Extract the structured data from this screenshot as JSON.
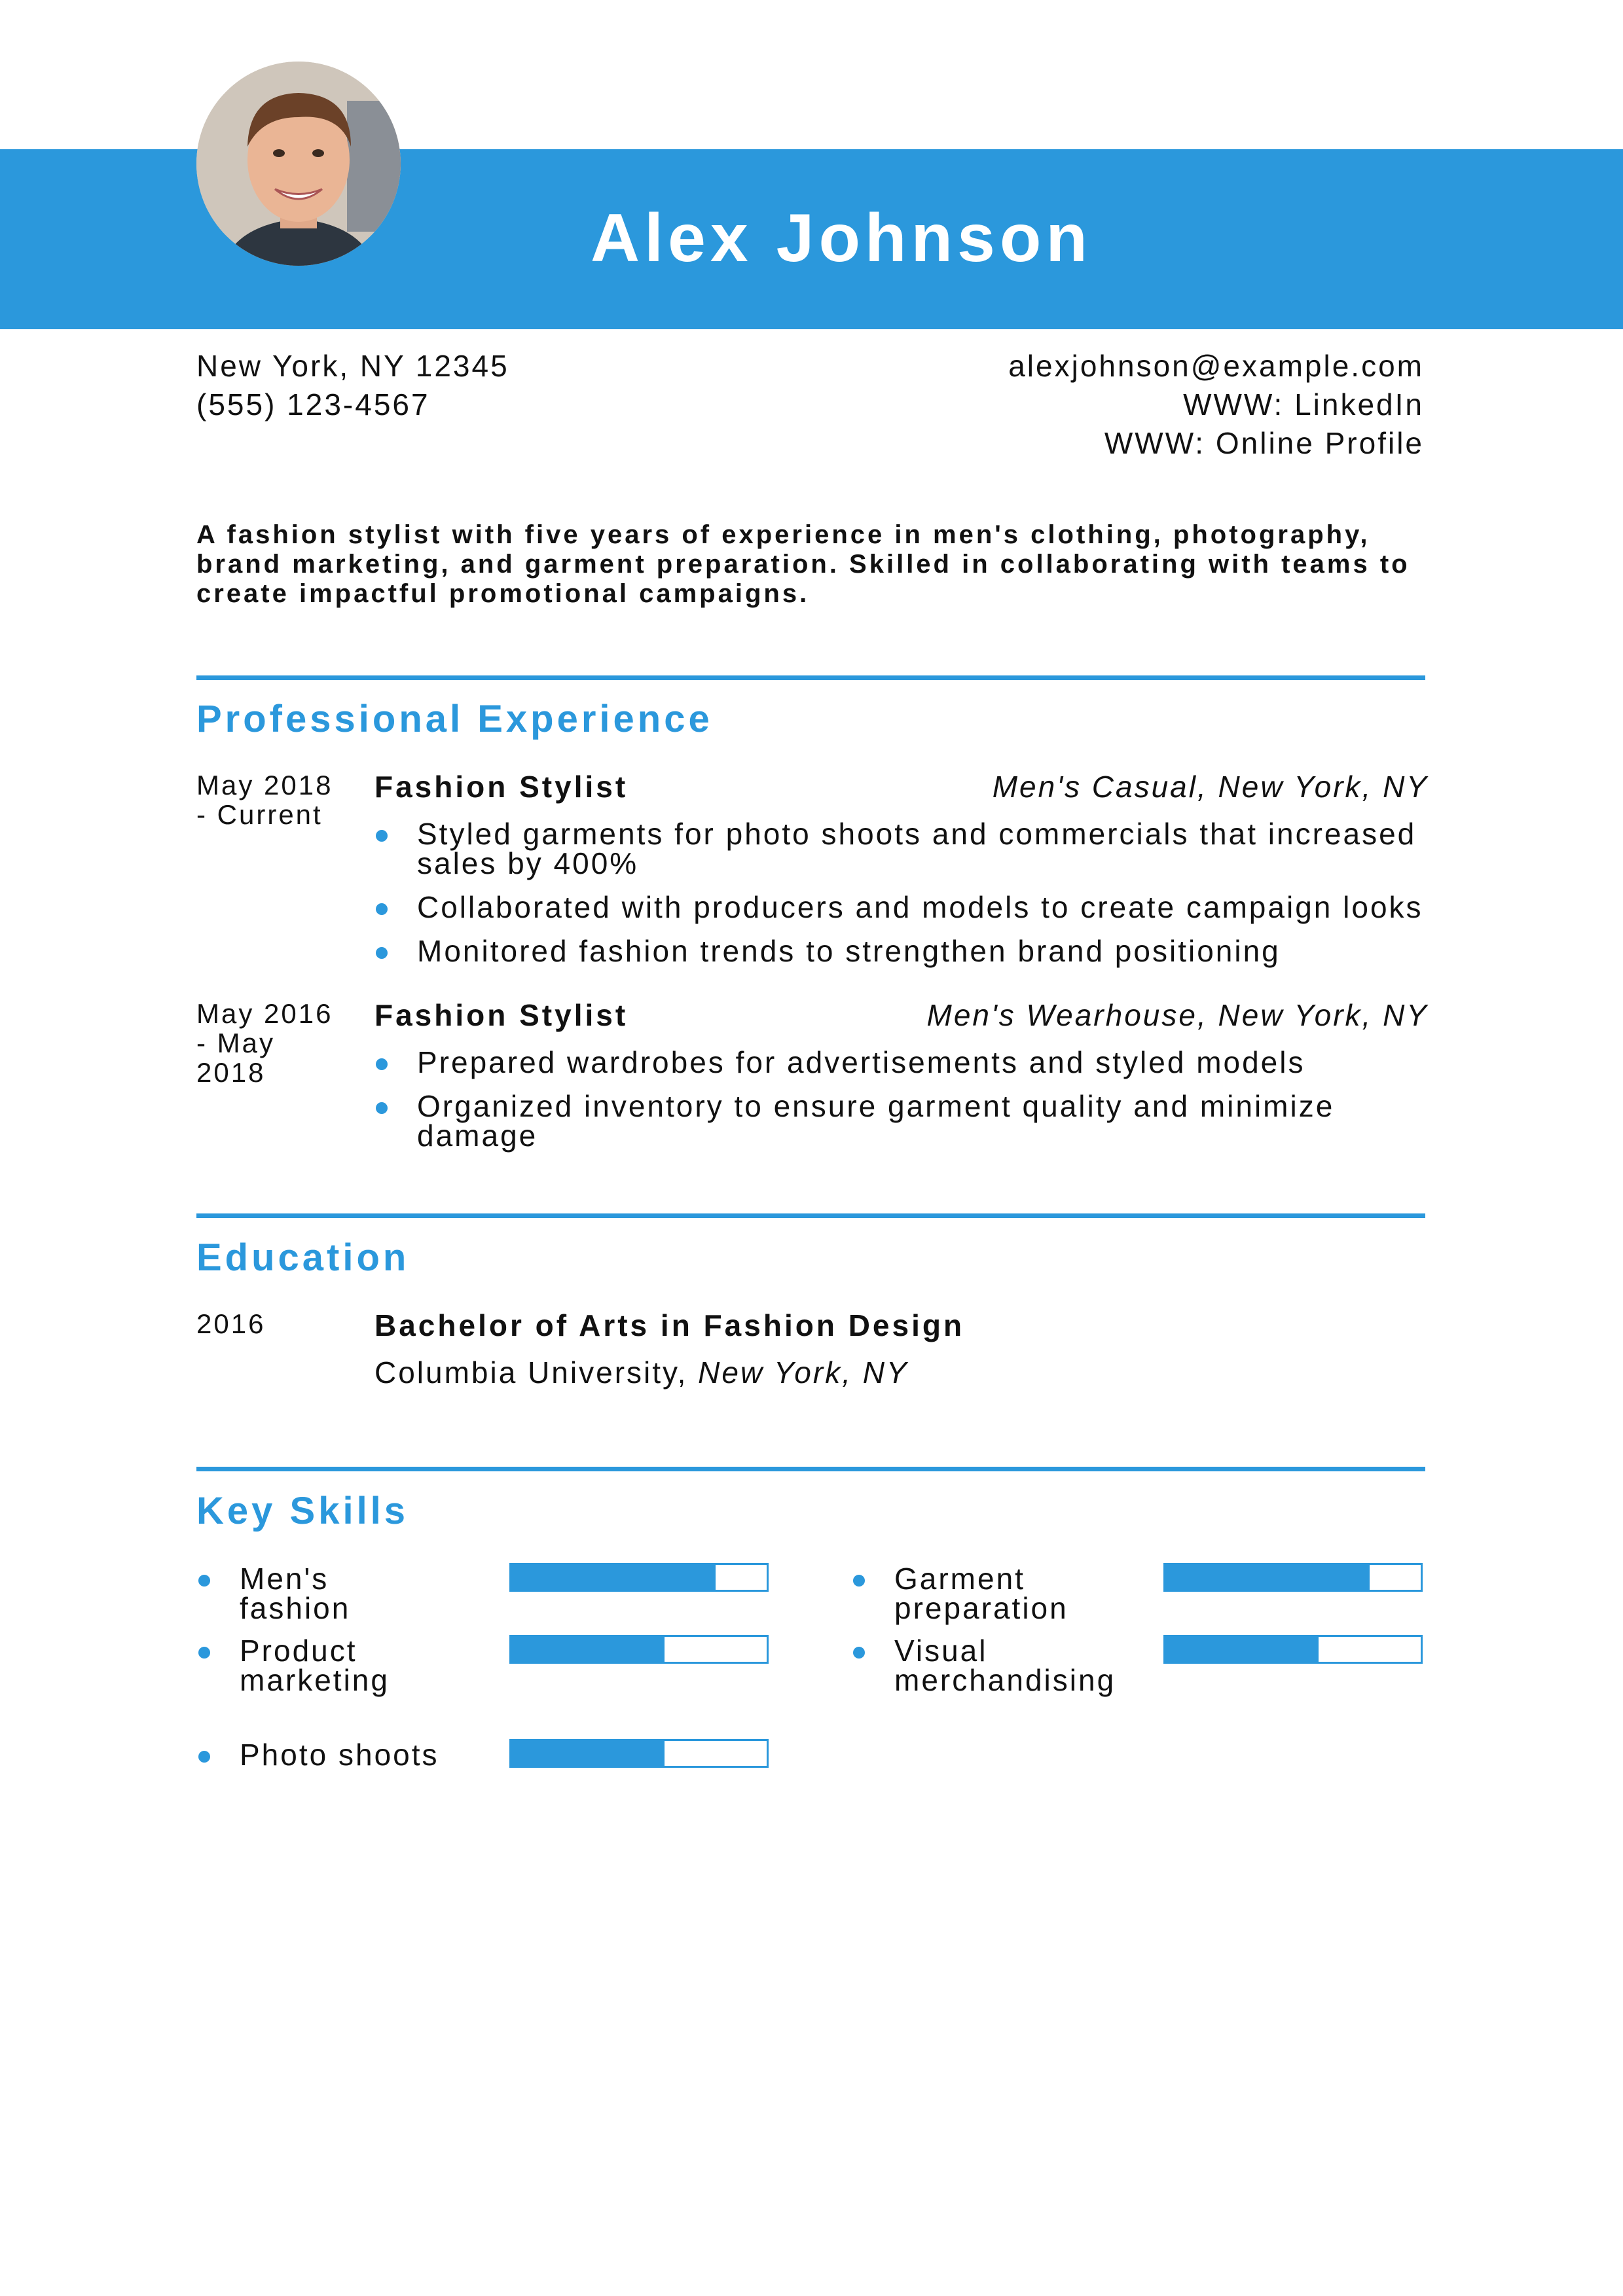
{
  "header": {
    "name": "Alex Johnson",
    "accent_color": "#2b98dc",
    "photo": "profile-photo"
  },
  "contact": {
    "address": "New York, NY 12345",
    "phone": "(555) 123-4567",
    "email": "alexjohnson@example.com",
    "linkedin": "WWW: LinkedIn",
    "profile": "WWW: Online Profile"
  },
  "summary": "A fashion stylist with five years of experience in men's clothing, photography, brand marketing, and garment preparation. Skilled in collaborating with teams to create impactful promotional campaigns.",
  "experience": {
    "heading": "Professional Experience",
    "jobs": [
      {
        "date": "May 2018 - Current",
        "title": "Fashion Stylist",
        "company": "Men's Casual, New York, NY",
        "bullets": [
          "Styled garments for photo shoots and commercials that increased sales by 400%",
          "Collaborated with producers and models to create campaign looks",
          "Monitored fashion trends to strengthen brand positioning"
        ]
      },
      {
        "date": "May 2016 - May 2018",
        "title": "Fashion Stylist",
        "company": "Men's Wearhouse, New York, NY",
        "bullets": [
          "Prepared wardrobes for advertisements and styled models",
          "Organized inventory to ensure garment quality and minimize damage"
        ]
      }
    ]
  },
  "education": {
    "heading": "Education",
    "year": "2016",
    "degree": "Bachelor of Arts in Fashion Design",
    "school": "Columbia University,",
    "location": "New York, NY"
  },
  "skills": {
    "heading": "Key Skills",
    "items": [
      {
        "name": "Men's fashion",
        "level": 0.8
      },
      {
        "name": "Product marketing",
        "level": 0.6
      },
      {
        "name": "Photo shoots",
        "level": 0.6
      },
      {
        "name": "Garment preparation",
        "level": 0.8
      },
      {
        "name": "Visual merchandising",
        "level": 0.6
      }
    ]
  }
}
